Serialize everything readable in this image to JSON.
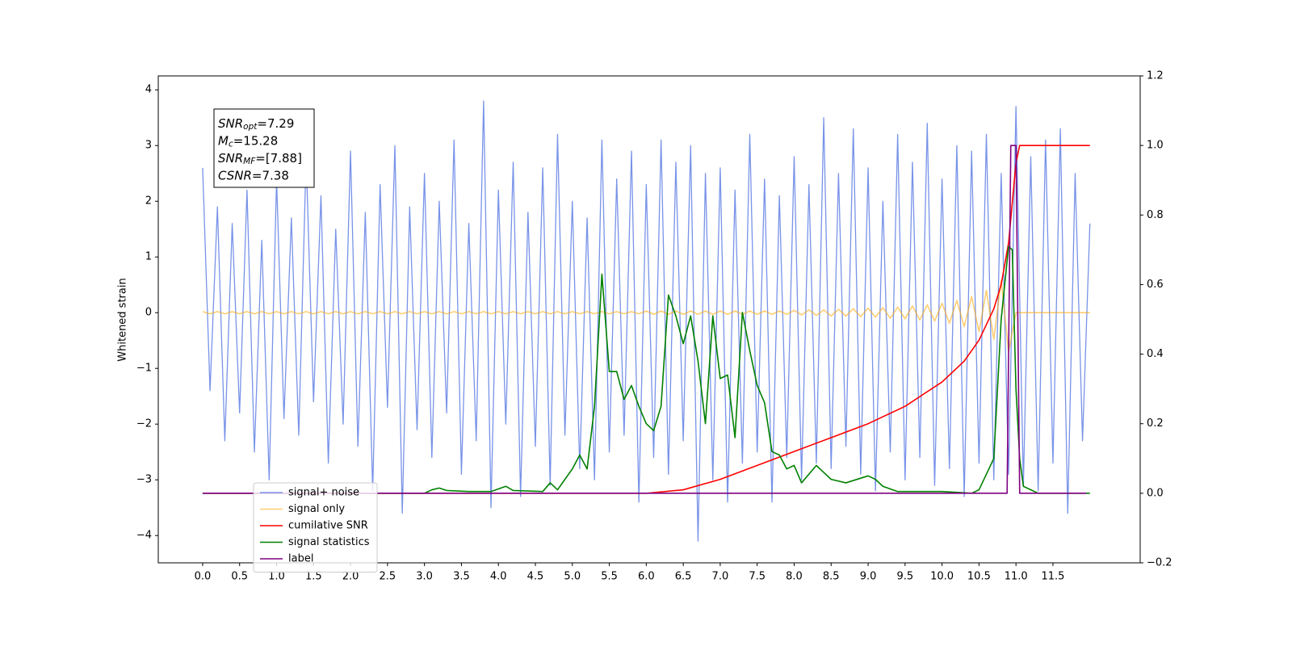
{
  "chart_data": {
    "type": "line",
    "ylabel": "Whitened strain",
    "annotations": [
      {
        "symbol": "SNR",
        "sub": "opt",
        "text": "=7.29"
      },
      {
        "symbol": "M",
        "sub": "c",
        "text": "=15.28"
      },
      {
        "symbol": "SNR",
        "sub": "MF",
        "text": "=[7.88]"
      },
      {
        "symbol": "CSNR",
        "text": "=7.38"
      }
    ],
    "x": [
      0,
      0.1,
      0.2,
      0.3,
      0.4,
      0.5,
      0.6,
      0.7,
      0.8,
      0.9,
      1.0,
      1.1,
      1.2,
      1.3,
      1.4,
      1.5,
      1.6,
      1.7,
      1.8,
      1.9,
      2.0,
      2.1,
      2.2,
      2.3,
      2.4,
      2.5,
      2.6,
      2.7,
      2.8,
      2.9,
      3.0,
      3.1,
      3.2,
      3.3,
      3.4,
      3.5,
      3.6,
      3.7,
      3.8,
      3.9,
      4.0,
      4.1,
      4.2,
      4.3,
      4.4,
      4.5,
      4.6,
      4.7,
      4.8,
      4.9,
      5.0,
      5.1,
      5.2,
      5.3,
      5.4,
      5.5,
      5.6,
      5.7,
      5.8,
      5.9,
      6.0,
      6.1,
      6.2,
      6.3,
      6.4,
      6.5,
      6.6,
      6.7,
      6.8,
      6.9,
      7.0,
      7.1,
      7.2,
      7.3,
      7.4,
      7.5,
      7.6,
      7.7,
      7.8,
      7.9,
      8.0,
      8.1,
      8.2,
      8.3,
      8.4,
      8.5,
      8.6,
      8.7,
      8.8,
      8.9,
      9.0,
      9.1,
      9.2,
      9.3,
      9.4,
      9.5,
      9.6,
      9.7,
      9.8,
      9.9,
      10.0,
      10.1,
      10.2,
      10.3,
      10.4,
      10.5,
      10.6,
      10.7,
      10.8,
      10.9,
      11.0,
      11.1,
      11.2,
      11.3,
      11.4,
      11.5,
      11.6,
      11.7,
      11.8,
      11.9,
      12.0
    ],
    "series": [
      {
        "name": "signal+ noise",
        "color": "#7893e8",
        "values": [
          2.6,
          -1.4,
          1.9,
          -2.3,
          1.6,
          -1.8,
          2.2,
          -2.5,
          1.3,
          -3.0,
          2.4,
          -1.9,
          1.7,
          -2.2,
          2.8,
          -1.6,
          2.1,
          -2.7,
          1.5,
          -2.0,
          2.9,
          -2.4,
          1.8,
          -3.2,
          2.3,
          -1.7,
          3.0,
          -3.6,
          1.9,
          -2.1,
          2.5,
          -2.6,
          2.0,
          -1.8,
          3.1,
          -2.9,
          1.6,
          -2.3,
          3.8,
          -3.5,
          2.2,
          -2.0,
          2.7,
          -3.3,
          1.8,
          -2.4,
          2.6,
          -3.1,
          3.2,
          -2.2,
          2.0,
          -2.8,
          1.7,
          -3.0,
          3.1,
          -2.5,
          2.4,
          -2.2,
          2.9,
          -3.4,
          2.3,
          -2.6,
          3.1,
          -2.9,
          2.7,
          -2.3,
          3.0,
          -4.1,
          2.5,
          -3.0,
          2.6,
          -3.4,
          2.2,
          -2.7,
          3.2,
          -2.5,
          2.4,
          -3.4,
          2.1,
          -2.6,
          2.8,
          -3.0,
          2.3,
          -2.7,
          3.5,
          -2.8,
          2.5,
          -2.4,
          3.3,
          -2.9,
          2.6,
          -3.2,
          2.0,
          -2.5,
          3.2,
          -3.0,
          2.7,
          -2.6,
          3.4,
          -3.1,
          2.4,
          -2.8,
          3.0,
          -3.3,
          2.9,
          -2.7,
          3.2,
          -3.0,
          2.5,
          -2.9,
          3.7,
          -3.1,
          2.8,
          -3.2,
          3.1,
          -2.7,
          3.3,
          -3.6,
          2.5,
          -2.3,
          1.6
        ]
      },
      {
        "name": "signal only",
        "color": "#ffa500",
        "values": [
          0.02,
          -0.02,
          0.02,
          -0.02,
          0.02,
          -0.02,
          0.02,
          -0.02,
          0.02,
          -0.02,
          0.02,
          -0.02,
          0.02,
          -0.02,
          0.02,
          -0.02,
          0.02,
          -0.02,
          0.02,
          -0.02,
          0.02,
          -0.02,
          0.02,
          -0.02,
          0.02,
          -0.02,
          0.02,
          -0.02,
          0.02,
          -0.02,
          0.02,
          -0.02,
          0.02,
          -0.02,
          0.02,
          -0.02,
          0.02,
          -0.02,
          0.02,
          -0.02,
          0.02,
          -0.02,
          0.02,
          -0.02,
          0.02,
          -0.02,
          0.02,
          -0.02,
          0.02,
          -0.02,
          0.02,
          -0.02,
          0.02,
          -0.02,
          0.02,
          -0.02,
          0.02,
          -0.02,
          0.02,
          -0.02,
          0.03,
          -0.03,
          0.03,
          -0.03,
          0.03,
          -0.03,
          0.03,
          -0.03,
          0.03,
          -0.03,
          0.03,
          -0.03,
          0.03,
          -0.03,
          0.03,
          -0.03,
          0.03,
          -0.03,
          0.03,
          -0.03,
          0.04,
          -0.04,
          0.05,
          -0.05,
          0.05,
          -0.06,
          0.06,
          -0.06,
          0.07,
          -0.07,
          0.08,
          -0.08,
          0.09,
          -0.1,
          0.1,
          -0.11,
          0.12,
          -0.13,
          0.14,
          -0.15,
          0.17,
          -0.19,
          0.22,
          -0.25,
          0.29,
          -0.34,
          0.4,
          -0.48,
          0.58,
          -0.7,
          0,
          0,
          0,
          0,
          0,
          0,
          0,
          0,
          0,
          0,
          0
        ]
      },
      {
        "name": "cumilative SNR",
        "color": "#ff0000",
        "axis": "y2",
        "x": [
          0,
          6.0,
          6.5,
          7.0,
          7.5,
          8.0,
          8.5,
          9.0,
          9.5,
          10.0,
          10.3,
          10.5,
          10.7,
          10.8,
          10.9,
          11.0,
          11.05,
          12.0
        ],
        "values": [
          0,
          0,
          0.01,
          0.04,
          0.08,
          0.12,
          0.16,
          0.2,
          0.25,
          0.32,
          0.38,
          0.44,
          0.53,
          0.6,
          0.72,
          0.95,
          1.0,
          1.0
        ]
      },
      {
        "name": "signal statistics",
        "color": "#008000",
        "axis": "y2",
        "x": [
          0,
          3.0,
          3.1,
          3.2,
          3.3,
          3.6,
          3.9,
          4.1,
          4.2,
          4.6,
          4.7,
          4.8,
          4.9,
          5.0,
          5.1,
          5.2,
          5.3,
          5.4,
          5.5,
          5.6,
          5.7,
          5.8,
          5.9,
          6.0,
          6.1,
          6.2,
          6.3,
          6.4,
          6.5,
          6.6,
          6.7,
          6.8,
          6.9,
          7.0,
          7.1,
          7.2,
          7.3,
          7.4,
          7.5,
          7.6,
          7.7,
          7.8,
          7.9,
          8.0,
          8.1,
          8.3,
          8.5,
          8.7,
          9.0,
          9.1,
          9.2,
          9.4,
          10.0,
          10.4,
          10.5,
          10.7,
          10.8,
          10.9,
          10.95,
          11.0,
          11.05,
          11.1,
          11.3,
          12.0
        ],
        "values": [
          0,
          0,
          0.01,
          0.015,
          0.008,
          0.005,
          0.005,
          0.02,
          0.008,
          0.005,
          0.03,
          0.01,
          0.04,
          0.07,
          0.11,
          0.07,
          0.25,
          0.63,
          0.35,
          0.35,
          0.27,
          0.31,
          0.25,
          0.2,
          0.18,
          0.25,
          0.57,
          0.51,
          0.43,
          0.51,
          0.38,
          0.2,
          0.51,
          0.33,
          0.34,
          0.16,
          0.52,
          0.41,
          0.31,
          0.26,
          0.12,
          0.11,
          0.07,
          0.08,
          0.03,
          0.08,
          0.04,
          0.03,
          0.05,
          0.04,
          0.02,
          0.005,
          0.005,
          0,
          0.01,
          0.1,
          0.5,
          0.71,
          0.7,
          0.3,
          0.1,
          0.02,
          0,
          0
        ]
      },
      {
        "name": "label",
        "color": "#800080",
        "axis": "y2",
        "x": [
          0,
          10.88,
          10.93,
          11.0,
          11.05,
          11.95
        ],
        "values": [
          0,
          0,
          1,
          1,
          0,
          0
        ]
      }
    ],
    "xlim": [
      -0.6,
      12.68
    ],
    "ylim": [
      -4.49,
      4.25
    ],
    "y2lim": [
      -0.2,
      1.2
    ],
    "xticks": [
      {
        "value": 0,
        "label": "0.0"
      },
      {
        "value": 0.5,
        "label": "0.5"
      },
      {
        "value": 1,
        "label": "1.0"
      },
      {
        "value": 1.5,
        "label": "1.5"
      },
      {
        "value": 2,
        "label": "2.0"
      },
      {
        "value": 2.5,
        "label": "2.5"
      },
      {
        "value": 3,
        "label": "3.0"
      },
      {
        "value": 3.5,
        "label": "3.5"
      },
      {
        "value": 4,
        "label": "4.0"
      },
      {
        "value": 4.5,
        "label": "4.5"
      },
      {
        "value": 5,
        "label": "5.0"
      },
      {
        "value": 5.5,
        "label": "5.5"
      },
      {
        "value": 6,
        "label": "6.0"
      },
      {
        "value": 6.5,
        "label": "6.5"
      },
      {
        "value": 7,
        "label": "7.0"
      },
      {
        "value": 7.5,
        "label": "7.5"
      },
      {
        "value": 8,
        "label": "8.0"
      },
      {
        "value": 8.5,
        "label": "8.5"
      },
      {
        "value": 9,
        "label": "9.0"
      },
      {
        "value": 9.5,
        "label": "9.5"
      },
      {
        "value": 10,
        "label": "10.0"
      },
      {
        "value": 10.5,
        "label": "10.5"
      },
      {
        "value": 11,
        "label": "11.0"
      },
      {
        "value": 11.5,
        "label": "11.5"
      }
    ],
    "yticks": [
      {
        "value": -4,
        "label": "−4"
      },
      {
        "value": -3,
        "label": "−3"
      },
      {
        "value": -2,
        "label": "−2"
      },
      {
        "value": -1,
        "label": "−1"
      },
      0,
      1,
      2,
      3,
      4
    ],
    "y2ticks": [
      {
        "value": -0.2,
        "label": "−0.2"
      },
      {
        "value": 0,
        "label": "0.0"
      },
      {
        "value": 0.2,
        "label": "0.2"
      },
      {
        "value": 0.4,
        "label": "0.4"
      },
      {
        "value": 0.6,
        "label": "0.6"
      },
      {
        "value": 0.8,
        "label": "0.8"
      },
      {
        "value": 1,
        "label": "1.0"
      },
      {
        "value": 1.2,
        "label": "1.2"
      }
    ],
    "grid": false,
    "legend": "lower left"
  }
}
